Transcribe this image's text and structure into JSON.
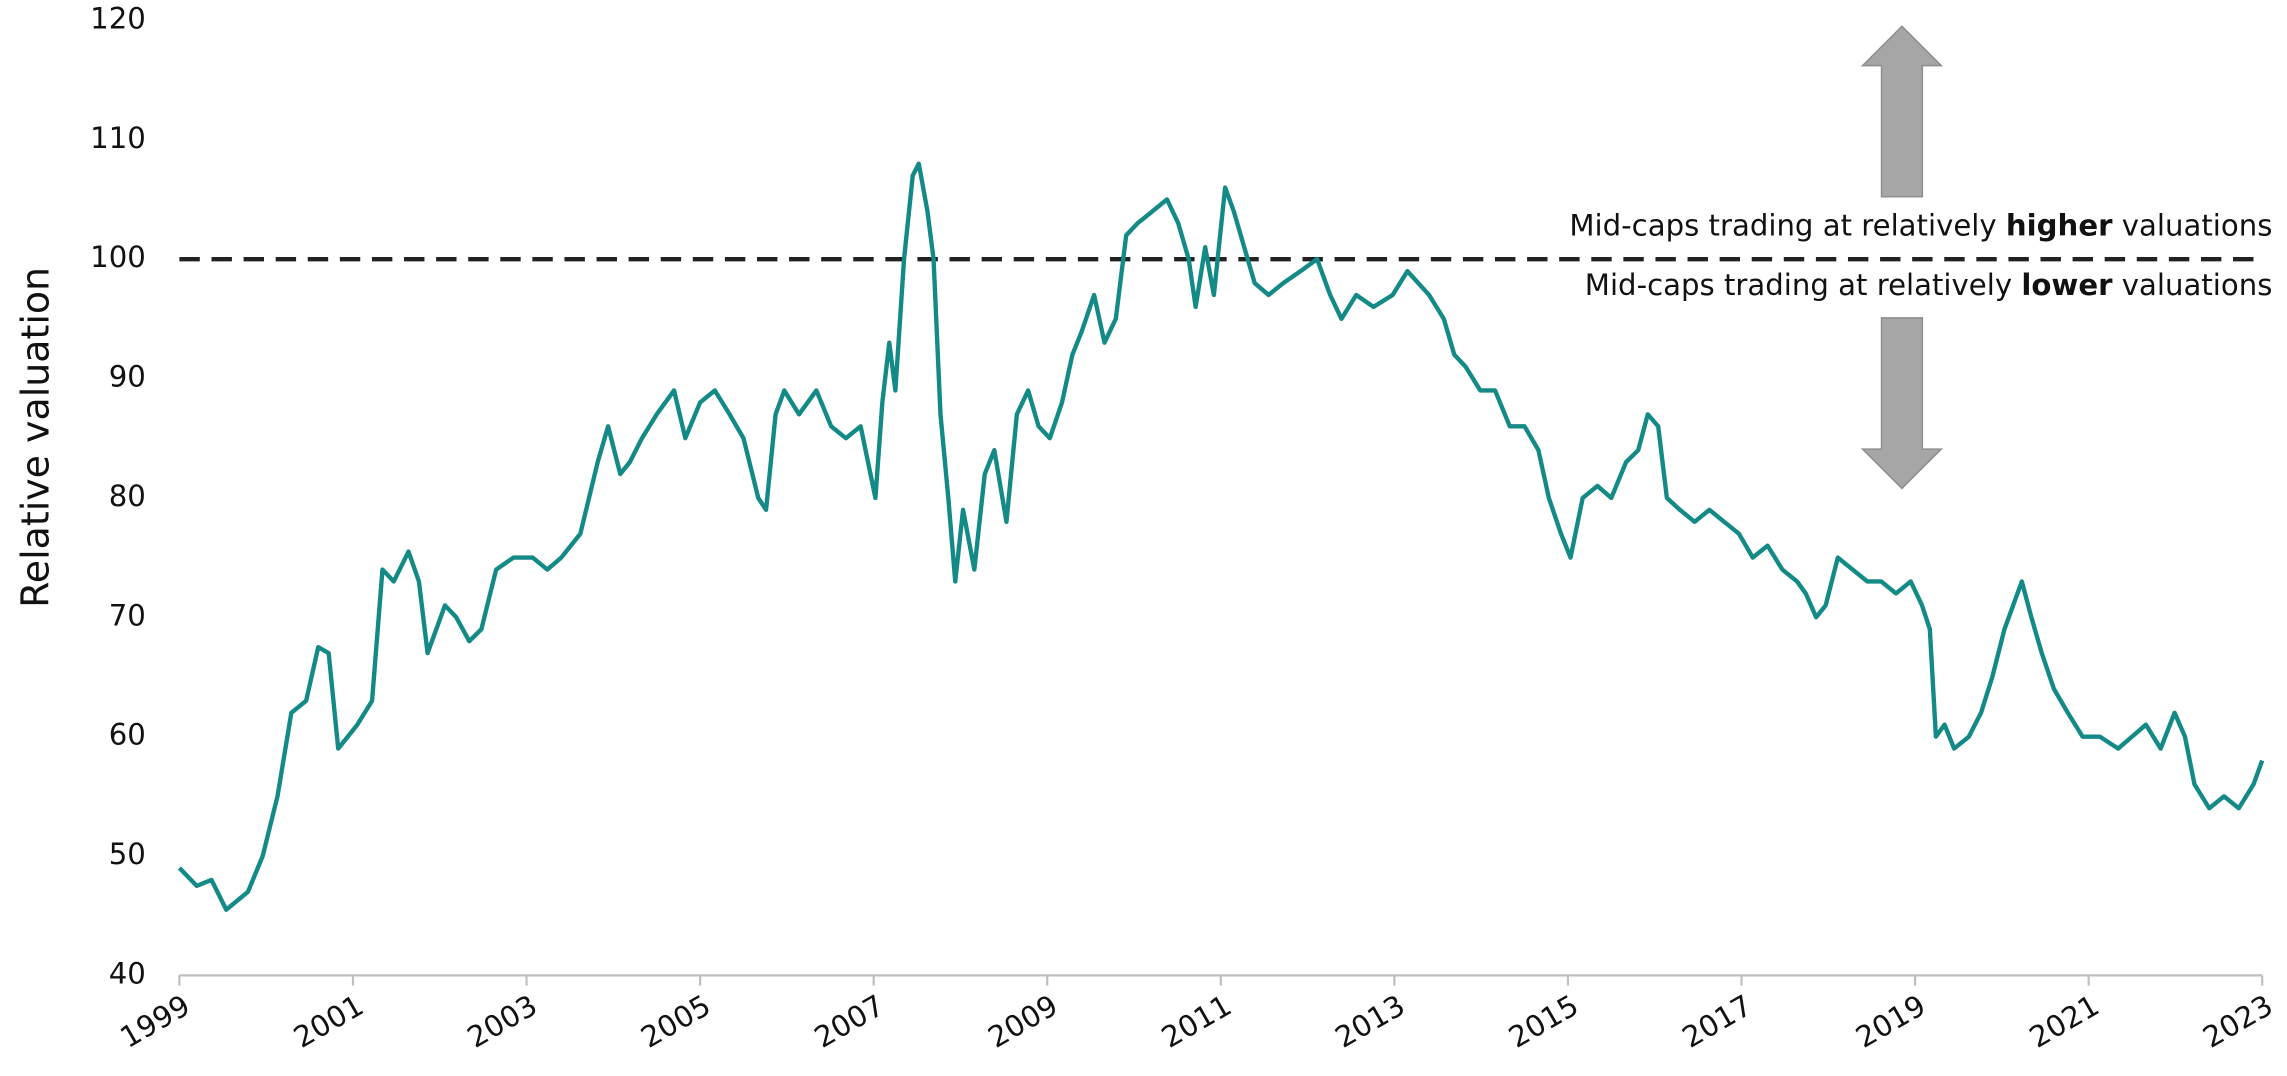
{
  "chart_data": {
    "type": "line",
    "y_label": "Relative valuation",
    "x": [
      1999.0,
      1999.2,
      1999.37,
      1999.54,
      1999.79,
      1999.96,
      2000.13,
      2000.29,
      2000.46,
      2000.6,
      2000.72,
      2000.83,
      2001.05,
      2001.22,
      2001.34,
      2001.47,
      2001.64,
      2001.76,
      2001.86,
      2002.06,
      2002.19,
      2002.34,
      2002.48,
      2002.65,
      2002.85,
      2003.07,
      2003.24,
      2003.4,
      2003.62,
      2003.82,
      2003.94,
      2004.08,
      2004.19,
      2004.33,
      2004.5,
      2004.7,
      2004.83,
      2005.0,
      2005.17,
      2005.34,
      2005.5,
      2005.67,
      2005.76,
      2005.87,
      2005.97,
      2006.14,
      2006.34,
      2006.51,
      2006.68,
      2006.85,
      2007.02,
      2007.1,
      2007.18,
      2007.25,
      2007.35,
      2007.45,
      2007.52,
      2007.62,
      2007.69,
      2007.77,
      2007.86,
      2007.94,
      2008.03,
      2008.16,
      2008.28,
      2008.39,
      2008.53,
      2008.65,
      2008.78,
      2008.9,
      2009.03,
      2009.17,
      2009.29,
      2009.4,
      2009.54,
      2009.66,
      2009.79,
      2009.91,
      2010.04,
      2010.21,
      2010.38,
      2010.51,
      2010.63,
      2010.71,
      2010.82,
      2010.92,
      2011.05,
      2011.15,
      2011.27,
      2011.39,
      2011.55,
      2011.72,
      2011.92,
      2012.11,
      2012.26,
      2012.39,
      2012.56,
      2012.76,
      2012.98,
      2013.15,
      2013.4,
      2013.57,
      2013.69,
      2013.82,
      2013.99,
      2014.16,
      2014.33,
      2014.5,
      2014.66,
      2014.78,
      2014.92,
      2015.03,
      2015.17,
      2015.34,
      2015.5,
      2015.67,
      2015.81,
      2015.92,
      2016.04,
      2016.14,
      2016.29,
      2016.46,
      2016.63,
      2016.8,
      2016.97,
      2017.13,
      2017.3,
      2017.47,
      2017.64,
      2017.74,
      2017.86,
      2017.97,
      2018.11,
      2018.28,
      2018.45,
      2018.61,
      2018.78,
      2018.95,
      2019.08,
      2019.17,
      2019.24,
      2019.34,
      2019.45,
      2019.62,
      2019.76,
      2019.89,
      2020.03,
      2020.13,
      2020.23,
      2020.34,
      2020.46,
      2020.6,
      2020.76,
      2020.93,
      2021.13,
      2021.34,
      2021.5,
      2021.66,
      2021.83,
      2021.99,
      2022.11,
      2022.22,
      2022.39,
      2022.56,
      2022.73,
      2022.9,
      2023.0
    ],
    "series": [
      {
        "name": "Relative valuation",
        "color": "#148a87",
        "values": [
          49,
          47.5,
          48,
          45.5,
          47,
          50,
          55,
          62,
          63,
          67.5,
          67,
          59,
          61,
          63,
          74,
          73,
          75.5,
          73,
          67,
          71,
          70,
          68,
          69,
          74,
          75,
          75,
          74,
          75,
          77,
          83,
          86,
          82,
          83,
          85,
          87,
          89,
          85,
          88,
          89,
          87,
          85,
          80,
          79,
          87,
          89,
          87,
          89,
          86,
          85,
          86,
          80,
          88,
          93,
          89,
          100,
          107,
          108,
          104,
          100,
          87,
          80,
          73,
          79,
          74,
          82,
          84,
          78,
          87,
          89,
          86,
          85,
          88,
          92,
          94,
          97,
          93,
          95,
          102,
          103,
          104,
          105,
          103,
          100,
          96,
          101,
          97,
          106,
          104,
          101,
          98,
          97,
          98,
          99,
          100,
          97,
          95,
          97,
          96,
          97,
          99,
          97,
          95,
          92,
          91,
          89,
          89,
          86,
          86,
          84,
          80,
          77,
          75,
          80,
          81,
          80,
          83,
          84,
          87,
          86,
          80,
          79,
          78,
          79,
          78,
          77,
          75,
          76,
          74,
          73,
          72,
          70,
          71,
          75,
          74,
          73,
          73,
          72,
          73,
          71,
          69,
          60,
          61,
          59,
          60,
          62,
          65,
          69,
          71,
          73,
          70,
          67,
          64,
          62,
          60,
          60,
          59,
          60,
          61,
          59,
          62,
          60,
          56,
          54,
          55,
          54,
          56,
          58
        ]
      }
    ],
    "xlim": [
      1999,
      2023
    ],
    "xticks": [
      1999,
      2001,
      2003,
      2005,
      2007,
      2009,
      2011,
      2013,
      2015,
      2017,
      2019,
      2021,
      2023
    ],
    "ylim": [
      40,
      120
    ],
    "yticks": [
      40,
      50,
      60,
      70,
      80,
      90,
      100,
      110,
      120
    ],
    "grid": false,
    "hline": 100,
    "annotations": [
      {
        "parts": [
          "Mid-caps trading at relatively ",
          "higher",
          " valuations"
        ]
      },
      {
        "parts": [
          "Mid-caps trading at relatively ",
          "lower",
          " valuations"
        ]
      }
    ]
  }
}
